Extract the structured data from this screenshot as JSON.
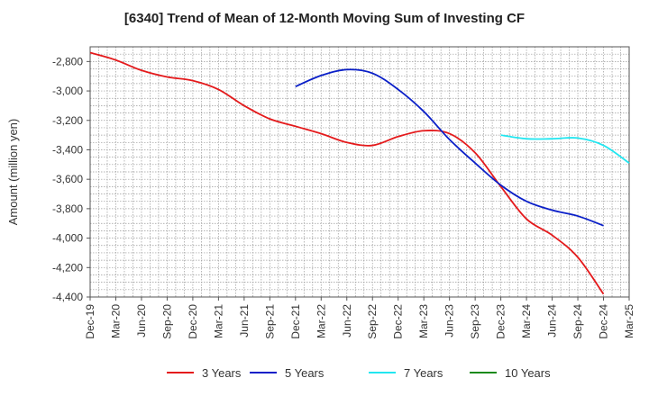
{
  "chart_data": {
    "type": "line",
    "title": "[6340]  Trend of Mean of 12-Month Moving Sum of Investing CF",
    "xlabel": "",
    "ylabel": "Amount (million yen)",
    "ylim": [
      -4400,
      -2700
    ],
    "yticks": [
      -2800,
      -3000,
      -3200,
      -3400,
      -3600,
      -3800,
      -4000,
      -4200,
      -4400
    ],
    "ytick_labels": [
      "-2,800",
      "-3,000",
      "-3,200",
      "-3,400",
      "-3,600",
      "-3,800",
      "-4,000",
      "-4,200",
      "-4,400"
    ],
    "xtick_labels": [
      "Dec-19",
      "Mar-20",
      "Jun-20",
      "Sep-20",
      "Dec-20",
      "Mar-21",
      "Jun-21",
      "Sep-21",
      "Dec-21",
      "Mar-22",
      "Jun-22",
      "Sep-22",
      "Dec-22",
      "Mar-23",
      "Jun-23",
      "Sep-23",
      "Dec-23",
      "Mar-24",
      "Jun-24",
      "Sep-24",
      "Dec-24",
      "Mar-25"
    ],
    "grid": true,
    "series": [
      {
        "name": "3 Years",
        "color": "#e41a1c",
        "start_index": 0,
        "values": [
          -2740,
          -2790,
          -2860,
          -2905,
          -2930,
          -2990,
          -3100,
          -3190,
          -3240,
          -3290,
          -3350,
          -3370,
          -3310,
          -3270,
          -3290,
          -3420,
          -3650,
          -3870,
          -3980,
          -4130,
          -4380
        ]
      },
      {
        "name": "5 Years",
        "color": "#0a1fc8",
        "start_index": 8,
        "values": [
          -2970,
          -2895,
          -2855,
          -2880,
          -2990,
          -3140,
          -3330,
          -3490,
          -3640,
          -3750,
          -3810,
          -3850,
          -3915
        ]
      },
      {
        "name": "7 Years",
        "color": "#22e6f0",
        "start_index": 16,
        "values": [
          -3300,
          -3325,
          -3325,
          -3320,
          -3370,
          -3490
        ]
      },
      {
        "name": "10 Years",
        "color": "#1b8a1b",
        "start_index": 0,
        "values": []
      }
    ],
    "legend_position": "bottom"
  }
}
